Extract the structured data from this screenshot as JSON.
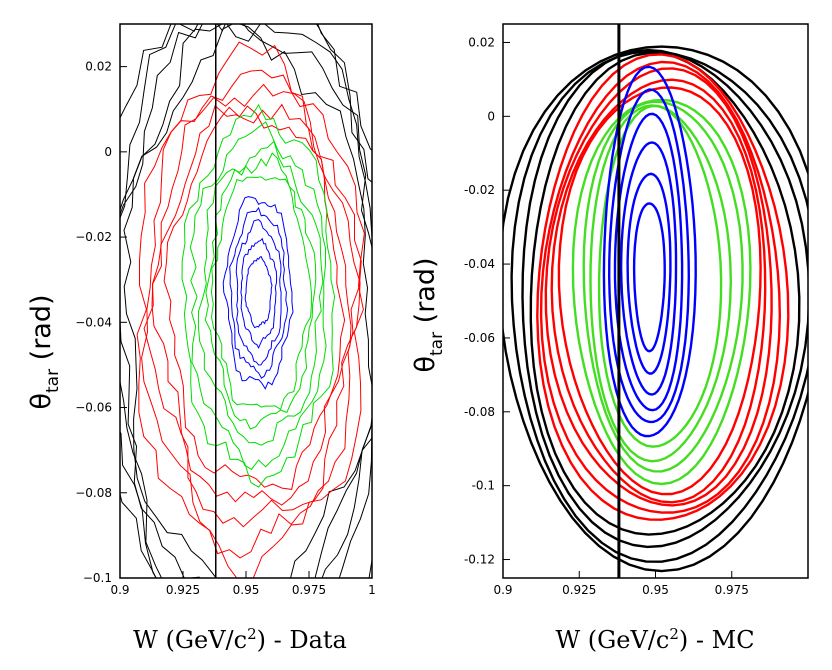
{
  "chart_data": [
    {
      "type": "contour",
      "panel": "data",
      "xlabel": {
        "pre": "W (GeV/c",
        "sup": "2",
        "post": ") - Data"
      },
      "ylabel": {
        "main": "θ",
        "sub": "tar",
        "post": " (rad)"
      },
      "xlim": [
        0.9,
        1.0
      ],
      "ylim": [
        -0.1,
        0.03
      ],
      "xticks": [
        {
          "value": 0.9,
          "label": "0.9"
        },
        {
          "value": 0.925,
          "label": "0.925"
        },
        {
          "value": 0.95,
          "label": "0.95"
        },
        {
          "value": 0.975,
          "label": "0.975"
        },
        {
          "value": 1.0,
          "label": "1"
        }
      ],
      "yticks": [
        {
          "value": 0.02,
          "label": "0.02"
        },
        {
          "value": 0.0,
          "label": "0"
        },
        {
          "value": -0.02,
          "label": "−0.02"
        },
        {
          "value": -0.04,
          "label": "−0.04"
        },
        {
          "value": -0.06,
          "label": "−0.06"
        },
        {
          "value": -0.08,
          "label": "−0.08"
        },
        {
          "value": -0.1,
          "label": "−0.1"
        }
      ],
      "vline_x": 0.938,
      "colors": {
        "outer": "#000000",
        "mid": "#ff0000",
        "inner": "#00dd00",
        "core": "#0000ff"
      },
      "levels": [
        {
          "color": "#000000",
          "cx": 0.951,
          "cy": -0.04,
          "rx": 0.062,
          "ry": 0.078
        },
        {
          "color": "#000000",
          "cx": 0.951,
          "cy": -0.039,
          "rx": 0.058,
          "ry": 0.075
        },
        {
          "color": "#000000",
          "cx": 0.951,
          "cy": -0.039,
          "rx": 0.055,
          "ry": 0.071
        },
        {
          "color": "#000000",
          "cx": 0.951,
          "cy": -0.038,
          "rx": 0.052,
          "ry": 0.068
        },
        {
          "color": "#000000",
          "cx": 0.951,
          "cy": -0.038,
          "rx": 0.049,
          "ry": 0.064
        },
        {
          "color": "#ff0000",
          "cx": 0.952,
          "cy": -0.037,
          "rx": 0.045,
          "ry": 0.059
        },
        {
          "color": "#ff0000",
          "cx": 0.952,
          "cy": -0.037,
          "rx": 0.042,
          "ry": 0.055
        },
        {
          "color": "#ff0000",
          "cx": 0.953,
          "cy": -0.036,
          "rx": 0.04,
          "ry": 0.051
        },
        {
          "color": "#ff0000",
          "cx": 0.953,
          "cy": -0.036,
          "rx": 0.037,
          "ry": 0.047
        },
        {
          "color": "#ff0000",
          "cx": 0.954,
          "cy": -0.035,
          "rx": 0.034,
          "ry": 0.044
        },
        {
          "color": "#00dd00",
          "cx": 0.955,
          "cy": -0.034,
          "rx": 0.03,
          "ry": 0.042
        },
        {
          "color": "#00dd00",
          "cx": 0.955,
          "cy": -0.034,
          "rx": 0.027,
          "ry": 0.038
        },
        {
          "color": "#00dd00",
          "cx": 0.956,
          "cy": -0.034,
          "rx": 0.024,
          "ry": 0.034
        },
        {
          "color": "#00dd00",
          "cx": 0.956,
          "cy": -0.033,
          "rx": 0.021,
          "ry": 0.031
        },
        {
          "color": "#00dd00",
          "cx": 0.956,
          "cy": -0.033,
          "rx": 0.019,
          "ry": 0.028
        },
        {
          "color": "#0000ff",
          "cx": 0.955,
          "cy": -0.033,
          "rx": 0.013,
          "ry": 0.022
        },
        {
          "color": "#0000ff",
          "cx": 0.955,
          "cy": -0.033,
          "rx": 0.011,
          "ry": 0.019
        },
        {
          "color": "#0000ff",
          "cx": 0.955,
          "cy": -0.033,
          "rx": 0.009,
          "ry": 0.016
        },
        {
          "color": "#0000ff",
          "cx": 0.955,
          "cy": -0.033,
          "rx": 0.007,
          "ry": 0.012
        },
        {
          "color": "#0000ff",
          "cx": 0.955,
          "cy": -0.033,
          "rx": 0.005,
          "ry": 0.008
        }
      ]
    },
    {
      "type": "contour",
      "panel": "mc",
      "xlabel": {
        "pre": "W (GeV/c",
        "sup": "2",
        "post": ") - MC"
      },
      "ylabel": {
        "main": "θ",
        "sub": "tar",
        "post": " (rad)"
      },
      "xlim": [
        0.9,
        1.0
      ],
      "ylim": [
        -0.125,
        0.025
      ],
      "xticks": [
        {
          "value": 0.9,
          "label": "0.9"
        },
        {
          "value": 0.925,
          "label": "0.925"
        },
        {
          "value": 0.95,
          "label": "0.95"
        },
        {
          "value": 0.975,
          "label": "0.975"
        }
      ],
      "yticks": [
        {
          "value": 0.02,
          "label": "0.02"
        },
        {
          "value": 0.0,
          "label": "0"
        },
        {
          "value": -0.02,
          "label": "-0.02"
        },
        {
          "value": -0.04,
          "label": "-0.04"
        },
        {
          "value": -0.06,
          "label": "-0.06"
        },
        {
          "value": -0.08,
          "label": "-0.08"
        },
        {
          "value": -0.1,
          "label": "-0.1"
        },
        {
          "value": -0.12,
          "label": "-0.12"
        }
      ],
      "vline_x": 0.938,
      "colors": {
        "outer": "#000000",
        "mid": "#ff0000",
        "inner": "#44dd22",
        "core": "#0000ff"
      },
      "levels": [
        {
          "color": "#000000",
          "cx": 0.952,
          "cy": -0.05,
          "rx": 0.053,
          "ry": 0.071
        },
        {
          "color": "#000000",
          "cx": 0.952,
          "cy": -0.05,
          "rx": 0.05,
          "ry": 0.069
        },
        {
          "color": "#000000",
          "cx": 0.952,
          "cy": -0.049,
          "rx": 0.047,
          "ry": 0.067
        },
        {
          "color": "#000000",
          "cx": 0.952,
          "cy": -0.049,
          "rx": 0.044,
          "ry": 0.065
        },
        {
          "color": "#ff0000",
          "cx": 0.952,
          "cy": -0.048,
          "rx": 0.041,
          "ry": 0.063
        },
        {
          "color": "#ff0000",
          "cx": 0.952,
          "cy": -0.048,
          "rx": 0.039,
          "ry": 0.061
        },
        {
          "color": "#ff0000",
          "cx": 0.952,
          "cy": -0.047,
          "rx": 0.037,
          "ry": 0.059
        },
        {
          "color": "#ff0000",
          "cx": 0.952,
          "cy": -0.047,
          "rx": 0.035,
          "ry": 0.057
        },
        {
          "color": "#ff0000",
          "cx": 0.952,
          "cy": -0.046,
          "rx": 0.033,
          "ry": 0.055
        },
        {
          "color": "#44dd22",
          "cx": 0.952,
          "cy": -0.046,
          "rx": 0.029,
          "ry": 0.052
        },
        {
          "color": "#44dd22",
          "cx": 0.952,
          "cy": -0.045,
          "rx": 0.026,
          "ry": 0.05
        },
        {
          "color": "#44dd22",
          "cx": 0.951,
          "cy": -0.045,
          "rx": 0.023,
          "ry": 0.048
        },
        {
          "color": "#44dd22",
          "cx": 0.951,
          "cy": -0.044,
          "rx": 0.02,
          "ry": 0.046
        },
        {
          "color": "#0000ff",
          "cx": 0.948,
          "cy": -0.038,
          "rx": 0.015,
          "ry": 0.05
        },
        {
          "color": "#0000ff",
          "cx": 0.948,
          "cy": -0.039,
          "rx": 0.013,
          "ry": 0.045
        },
        {
          "color": "#0000ff",
          "cx": 0.948,
          "cy": -0.04,
          "rx": 0.011,
          "ry": 0.04
        },
        {
          "color": "#0000ff",
          "cx": 0.948,
          "cy": -0.041,
          "rx": 0.009,
          "ry": 0.034
        },
        {
          "color": "#0000ff",
          "cx": 0.948,
          "cy": -0.042,
          "rx": 0.007,
          "ry": 0.027
        },
        {
          "color": "#0000ff",
          "cx": 0.948,
          "cy": -0.043,
          "rx": 0.005,
          "ry": 0.02
        }
      ]
    }
  ]
}
